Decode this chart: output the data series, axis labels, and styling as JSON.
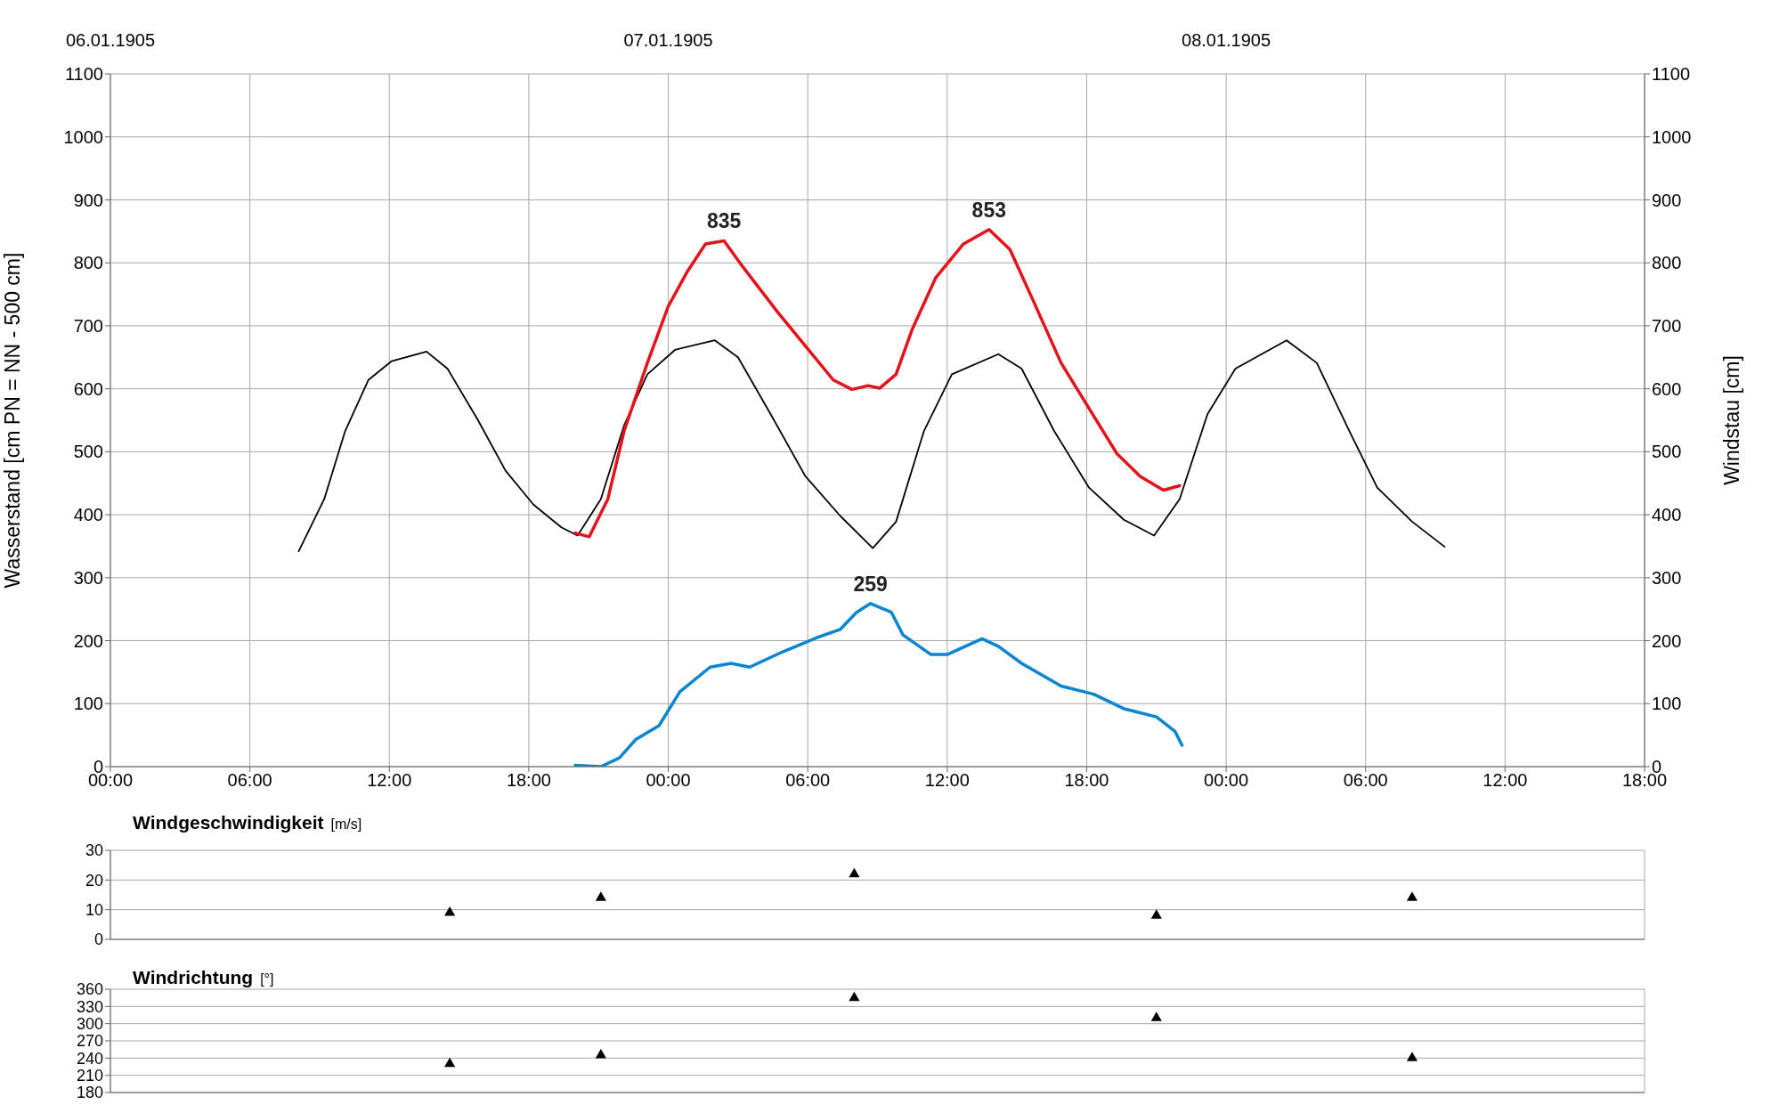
{
  "chart_data": [
    {
      "type": "line",
      "ylabel": "Wasserstand [cm PN = NN - 500 cm]",
      "y2label": "Windstau [cm]",
      "xlim": [
        "1905-01-06T00:00",
        "1905-01-08T18:00"
      ],
      "xticks": [
        {
          "value": "1905-01-06T00:00",
          "label": "00:00"
        },
        {
          "value": "1905-01-06T06:00",
          "label": "06:00"
        },
        {
          "value": "1905-01-06T12:00",
          "label": "12:00"
        },
        {
          "value": "1905-01-06T18:00",
          "label": "18:00"
        },
        {
          "value": "1905-01-07T00:00",
          "label": "00:00"
        },
        {
          "value": "1905-01-07T06:00",
          "label": "06:00"
        },
        {
          "value": "1905-01-07T12:00",
          "label": "12:00"
        },
        {
          "value": "1905-01-07T18:00",
          "label": "18:00"
        },
        {
          "value": "1905-01-08T00:00",
          "label": "00:00"
        },
        {
          "value": "1905-01-08T06:00",
          "label": "06:00"
        },
        {
          "value": "1905-01-08T12:00",
          "label": "12:00"
        },
        {
          "value": "1905-01-08T18:00",
          "label": "18:00"
        }
      ],
      "x2lim": [
        "1905-01-06T00:00",
        "1905-01-08T18:00"
      ],
      "x2ticks": [
        {
          "value": "1905-01-06",
          "label": "06.01.1905"
        },
        {
          "value": "1905-01-07",
          "label": "07.01.1905"
        },
        {
          "value": "1905-01-08",
          "label": "08.01.1905"
        }
      ],
      "ylim": [
        0,
        1100
      ],
      "yticks": [
        0,
        100,
        200,
        300,
        400,
        500,
        600,
        700,
        800,
        900,
        1000,
        1100
      ],
      "y2lim": [
        0,
        1100
      ],
      "y2ticks": [
        0,
        100,
        200,
        300,
        400,
        500,
        600,
        700,
        800,
        900,
        1000,
        1100
      ],
      "grid": true,
      "line_style": "solid",
      "series": [
        {
          "color": "#000000",
          "x": [
            "1905-01-06T08:06",
            "1905-01-06T09:12",
            "1905-01-06T10:06",
            "1905-01-06T11:06",
            "1905-01-06T12:06",
            "1905-01-06T13:36",
            "1905-01-06T14:30",
            "1905-01-06T15:48",
            "1905-01-06T17:00",
            "1905-01-06T18:12",
            "1905-01-06T19:24",
            "1905-01-06T20:06",
            "1905-01-06T21:06",
            "1905-01-06T22:06",
            "1905-01-06T23:06",
            "1905-01-07T00:18",
            "1905-01-07T02:00",
            "1905-01-07T03:00",
            "1905-01-07T04:24",
            "1905-01-07T05:54",
            "1905-01-07T07:24",
            "1905-01-07T08:48",
            "1905-01-07T09:48",
            "1905-01-07T11:00",
            "1905-01-07T12:12",
            "1905-01-07T14:12",
            "1905-01-07T15:12",
            "1905-01-07T16:36",
            "1905-01-07T18:06",
            "1905-01-07T19:36",
            "1905-01-07T20:54",
            "1905-01-07T22:00",
            "1905-01-07T23:12",
            "1905-01-08T00:24",
            "1905-01-08T02:36",
            "1905-01-08T03:54",
            "1905-01-08T05:18",
            "1905-01-08T06:30",
            "1905-01-08T08:00",
            "1905-01-08T09:24"
          ],
          "values": [
            342,
            425,
            533,
            614,
            644,
            659,
            632,
            551,
            470,
            416,
            380,
            367,
            425,
            542,
            623,
            662,
            677,
            650,
            560,
            461,
            398,
            347,
            389,
            533,
            623,
            655,
            632,
            533,
            443,
            392,
            367,
            425,
            560,
            632,
            677,
            641,
            533,
            443,
            389,
            349
          ]
        },
        {
          "color": "#e3131b",
          "x": [
            "1905-01-06T20:00",
            "1905-01-06T20:36",
            "1905-01-06T21:24",
            "1905-01-06T22:06",
            "1905-01-06T23:06",
            "1905-01-07T00:00",
            "1905-01-07T00:48",
            "1905-01-07T01:36",
            "1905-01-07T02:24",
            "1905-01-07T03:12",
            "1905-01-07T04:42",
            "1905-01-07T05:54",
            "1905-01-07T07:06",
            "1905-01-07T07:54",
            "1905-01-07T08:36",
            "1905-01-07T09:06",
            "1905-01-07T09:48",
            "1905-01-07T10:30",
            "1905-01-07T11:30",
            "1905-01-07T12:42",
            "1905-01-07T13:48",
            "1905-01-07T14:42",
            "1905-01-07T15:42",
            "1905-01-07T16:54",
            "1905-01-07T18:06",
            "1905-01-07T19:18",
            "1905-01-07T20:18",
            "1905-01-07T21:18",
            "1905-01-07T22:00"
          ],
          "values": [
            371,
            365,
            425,
            533,
            641,
            731,
            785,
            830,
            835,
            794,
            722,
            668,
            614,
            599,
            605,
            601,
            623,
            695,
            776,
            830,
            853,
            821,
            740,
            641,
            569,
            497,
            461,
            439,
            446
          ]
        },
        {
          "color": "#0a86d0",
          "x": [
            "1905-01-06T20:00",
            "1905-01-06T21:06",
            "1905-01-06T21:54",
            "1905-01-06T22:36",
            "1905-01-06T23:36",
            "1905-01-07T00:30",
            "1905-01-07T01:48",
            "1905-01-07T02:42",
            "1905-01-07T03:30",
            "1905-01-07T04:54",
            "1905-01-07T06:24",
            "1905-01-07T07:24",
            "1905-01-07T08:06",
            "1905-01-07T08:42",
            "1905-01-07T09:36",
            "1905-01-07T10:06",
            "1905-01-07T11:18",
            "1905-01-07T12:00",
            "1905-01-07T13:30",
            "1905-01-07T14:12",
            "1905-01-07T15:12",
            "1905-01-07T16:54",
            "1905-01-07T18:18",
            "1905-01-07T19:36",
            "1905-01-07T21:00",
            "1905-01-07T21:48",
            "1905-01-07T22:06"
          ],
          "values": [
            2,
            0,
            14,
            43,
            65,
            119,
            158,
            164,
            158,
            182,
            205,
            218,
            245,
            259,
            245,
            209,
            178,
            178,
            203,
            191,
            164,
            128,
            115,
            92,
            79,
            56,
            34
          ]
        }
      ],
      "annotations": [
        {
          "text": "835",
          "x": "1905-01-07T02:24",
          "y": 835
        },
        {
          "text": "853",
          "x": "1905-01-07T13:48",
          "y": 853
        },
        {
          "text": "259",
          "x": "1905-01-07T08:42",
          "y": 259
        }
      ]
    },
    {
      "type": "scatter",
      "title": "Windgeschwindigkeit",
      "ylabel": "[m/s]",
      "xlim": [
        "1905-01-06T00:00",
        "1905-01-08T18:00"
      ],
      "xticks": [
        {
          "value": "1905-01-06T00:00",
          "label": null
        },
        {
          "value": "1905-01-06T06:00",
          "label": null
        },
        {
          "value": "1905-01-06T12:00",
          "label": null
        },
        {
          "value": "1905-01-06T18:00",
          "label": null
        },
        {
          "value": "1905-01-07T00:00",
          "label": null
        },
        {
          "value": "1905-01-07T06:00",
          "label": null
        },
        {
          "value": "1905-01-07T12:00",
          "label": null
        },
        {
          "value": "1905-01-07T18:00",
          "label": null
        },
        {
          "value": "1905-01-08T00:00",
          "label": null
        },
        {
          "value": "1905-01-08T06:00",
          "label": null
        },
        {
          "value": "1905-01-08T12:00",
          "label": null
        },
        {
          "value": "1905-01-08T18:00",
          "label": null
        }
      ],
      "ylim": [
        0,
        30
      ],
      "yticks": [
        0,
        10,
        20,
        30
      ],
      "grid": true,
      "tick_labels": "y",
      "marker": "triangle",
      "series": [
        {
          "color": "#000000",
          "x": [
            "1905-01-06T14:36",
            "1905-01-06T21:06",
            "1905-01-07T08:00",
            "1905-01-07T21:00",
            "1905-01-08T08:00"
          ],
          "values": [
            9,
            14,
            22,
            8,
            14
          ]
        }
      ]
    },
    {
      "type": "scatter",
      "title": "Windrichtung",
      "ylabel": "[°]",
      "xlim": [
        "1905-01-06T00:00",
        "1905-01-08T18:00"
      ],
      "xticks": [
        {
          "value": "1905-01-06T00:00",
          "label": null
        },
        {
          "value": "1905-01-06T06:00",
          "label": null
        },
        {
          "value": "1905-01-06T12:00",
          "label": null
        },
        {
          "value": "1905-01-06T18:00",
          "label": null
        },
        {
          "value": "1905-01-07T00:00",
          "label": null
        },
        {
          "value": "1905-01-07T06:00",
          "label": null
        },
        {
          "value": "1905-01-07T12:00",
          "label": null
        },
        {
          "value": "1905-01-07T18:00",
          "label": null
        },
        {
          "value": "1905-01-08T00:00",
          "label": null
        },
        {
          "value": "1905-01-08T06:00",
          "label": null
        },
        {
          "value": "1905-01-08T12:00",
          "label": null
        },
        {
          "value": "1905-01-08T18:00",
          "label": null
        }
      ],
      "ylim": [
        180,
        360
      ],
      "yticks": [
        180,
        210,
        240,
        270,
        300,
        330,
        360
      ],
      "grid": true,
      "tick_labels": "y",
      "marker": "triangle",
      "series": [
        {
          "color": "#000000",
          "x": [
            "1905-01-06T14:36",
            "1905-01-06T21:06",
            "1905-01-07T08:00",
            "1905-01-07T21:00",
            "1905-01-08T08:00"
          ],
          "values": [
            230,
            245,
            345,
            310,
            240
          ]
        }
      ]
    }
  ]
}
